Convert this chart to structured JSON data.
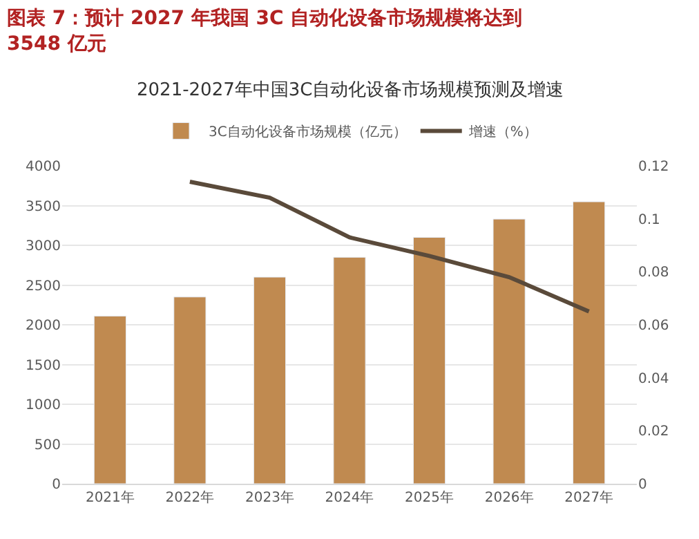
{
  "chart_data": {
    "type": "bar",
    "title": "图表 7：预计 2027 年我国 3C 自动化设备市场规模将达到 3548 亿元",
    "subtitle": "2021-2027年中国3C自动化设备市场规模预测及增速",
    "categories": [
      "2021年",
      "2022年",
      "2023年",
      "2024年",
      "2025年",
      "2026年",
      "2027年"
    ],
    "series": [
      {
        "name": "3C自动化设备市场规模（亿元）",
        "color": "#c08a50",
        "values": [
          2110,
          2350,
          2600,
          2850,
          3100,
          3330,
          3548
        ]
      },
      {
        "name": "增速（%）",
        "type": "line",
        "axis": "y2",
        "color": "#5a4a3a",
        "values": [
          null,
          0.114,
          0.108,
          0.093,
          0.086,
          0.078,
          0.065
        ]
      }
    ],
    "ylim": [
      0,
      4000
    ],
    "yticks": [
      0,
      500,
      1000,
      1500,
      2000,
      2500,
      3000,
      3500,
      4000
    ],
    "y2lim": [
      0,
      0.12
    ],
    "y2ticks": [
      0,
      0.02,
      0.04,
      0.06,
      0.08,
      0.1,
      0.12
    ],
    "grid": "y",
    "legend": "top",
    "marker": "none",
    "line_style": "solid"
  }
}
